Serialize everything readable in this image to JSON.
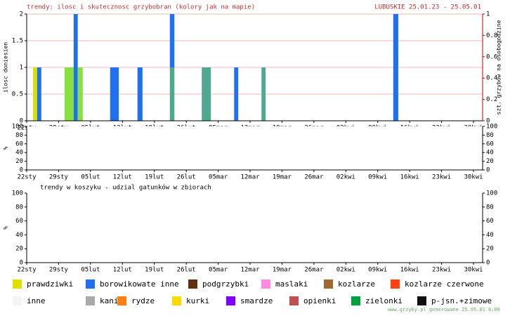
{
  "header": {
    "title": "trendy: ilosc i skutecznosc grzybobran (kolory jak na mapie)",
    "region": "LUBUSKIE 25.01.23 - 25.05.01"
  },
  "chart_data": [
    {
      "type": "bar",
      "ylabel": "ilosc doniesien",
      "y2label": "szt. grzybow na osobogodzine",
      "y2_color": "#c00000",
      "grid": true,
      "ylim": [
        0,
        2
      ],
      "yticks": [
        0,
        0.5,
        1,
        1.5,
        2
      ],
      "y2lim": [
        0,
        1
      ],
      "y2ticks": [
        0,
        0.2,
        0.4,
        0.6,
        0.8,
        1
      ],
      "xlim": [
        0,
        100
      ],
      "xticks": [
        {
          "value": 0,
          "label": "22sty"
        },
        {
          "value": 7,
          "label": "29sty"
        },
        {
          "value": 14,
          "label": "05lut"
        },
        {
          "value": 21,
          "label": "12lut"
        },
        {
          "value": 28,
          "label": "19lut"
        },
        {
          "value": 35,
          "label": "26lut"
        },
        {
          "value": 42,
          "label": "05mar"
        },
        {
          "value": 49,
          "label": "12mar"
        },
        {
          "value": 56,
          "label": "19mar"
        },
        {
          "value": 63,
          "label": "26mar"
        },
        {
          "value": 70,
          "label": "02kwi"
        },
        {
          "value": 77,
          "label": "09kwi"
        },
        {
          "value": 84,
          "label": "16kwi"
        },
        {
          "value": 91,
          "label": "23kwi"
        },
        {
          "value": 98,
          "label": "30kwi"
        }
      ],
      "bars": [
        {
          "x": [
            1.4,
            2.3
          ],
          "segments": [
            {
              "color": "#d8e000",
              "value": 1
            }
          ]
        },
        {
          "x": [
            2.3,
            3.2
          ],
          "segments": [
            {
              "color": "#2070f0",
              "value": 1
            }
          ]
        },
        {
          "x": [
            8.3,
            10.3
          ],
          "segments": [
            {
              "color": "#88e040",
              "value": 1
            }
          ]
        },
        {
          "x": [
            10.3,
            11.2
          ],
          "segments": [
            {
              "color": "#2070f0",
              "value": 2
            }
          ]
        },
        {
          "x": [
            11.2,
            12.3
          ],
          "segments": [
            {
              "color": "#88e040",
              "value": 1
            }
          ]
        },
        {
          "x": [
            18.3,
            20.2
          ],
          "segments": [
            {
              "color": "#2070f0",
              "value": 1
            }
          ]
        },
        {
          "x": [
            24.3,
            25.4
          ],
          "segments": [
            {
              "color": "#2070f0",
              "value": 1
            }
          ]
        },
        {
          "x": [
            31.4,
            32.4
          ],
          "segments": [
            {
              "color": "#50a890",
              "value": 1
            },
            {
              "color": "#2070f0",
              "value": 1
            }
          ]
        },
        {
          "x": [
            38.4,
            40.4
          ],
          "segments": [
            {
              "color": "#50a890",
              "value": 1
            }
          ]
        },
        {
          "x": [
            45.5,
            46.4
          ],
          "segments": [
            {
              "color": "#2070f0",
              "value": 1
            }
          ]
        },
        {
          "x": [
            51.5,
            52.4
          ],
          "segments": [
            {
              "color": "#50a890",
              "value": 1
            }
          ]
        },
        {
          "x": [
            80.4,
            81.5
          ],
          "segments": [
            {
              "color": "#2070f0",
              "value": 2
            }
          ]
        }
      ]
    },
    {
      "type": "bar",
      "ylabel": "%",
      "grid": false,
      "ylim": [
        0,
        100
      ],
      "yticks": [
        0,
        20,
        40,
        60,
        80,
        100
      ],
      "y2lim": [
        0,
        100
      ],
      "y2ticks": [
        0,
        20,
        40,
        60,
        80,
        100
      ],
      "xlim": [
        0,
        100
      ],
      "xticks": [
        {
          "value": 0,
          "label": "22sty"
        },
        {
          "value": 7,
          "label": "29sty"
        },
        {
          "value": 14,
          "label": "05lut"
        },
        {
          "value": 21,
          "label": "12lut"
        },
        {
          "value": 28,
          "label": "19lut"
        },
        {
          "value": 35,
          "label": "26lut"
        },
        {
          "value": 42,
          "label": "05mar"
        },
        {
          "value": 49,
          "label": "12mar"
        },
        {
          "value": 56,
          "label": "19mar"
        },
        {
          "value": 63,
          "label": "26mar"
        },
        {
          "value": 70,
          "label": "02kwi"
        },
        {
          "value": 77,
          "label": "09kwi"
        },
        {
          "value": 84,
          "label": "16kwi"
        },
        {
          "value": 91,
          "label": "23kwi"
        },
        {
          "value": 98,
          "label": "30kwi"
        }
      ],
      "bars": []
    },
    {
      "type": "bar",
      "title": "trendy w koszyku - udzial gatunków w zbiorach",
      "ylabel": "%",
      "grid": false,
      "ylim": [
        0,
        100
      ],
      "yticks": [
        0,
        20,
        40,
        60,
        80,
        100
      ],
      "y2lim": [
        0,
        100
      ],
      "y2ticks": [
        0,
        20,
        40,
        60,
        80,
        100
      ],
      "xlim": [
        0,
        100
      ],
      "xticks": [
        {
          "value": 0,
          "label": "22sty"
        },
        {
          "value": 7,
          "label": "29sty"
        },
        {
          "value": 14,
          "label": "05lut"
        },
        {
          "value": 21,
          "label": "12lut"
        },
        {
          "value": 28,
          "label": "19lut"
        },
        {
          "value": 35,
          "label": "26lut"
        },
        {
          "value": 42,
          "label": "05mar"
        },
        {
          "value": 49,
          "label": "12mar"
        },
        {
          "value": 56,
          "label": "19mar"
        },
        {
          "value": 63,
          "label": "26mar"
        },
        {
          "value": 70,
          "label": "02kwi"
        },
        {
          "value": 77,
          "label": "09kwi"
        },
        {
          "value": 84,
          "label": "16kwi"
        },
        {
          "value": 91,
          "label": "23kwi"
        },
        {
          "value": 98,
          "label": "30kwi"
        }
      ],
      "bars": []
    }
  ],
  "legend": [
    {
      "label": "prawdziwki",
      "color": "#e0e000"
    },
    {
      "label": "borowikowate inne",
      "color": "#2070f0"
    },
    {
      "label": "podgrzybki",
      "color": "#603010"
    },
    {
      "label": "maslaki",
      "color": "#ff88e0"
    },
    {
      "label": "kozlarze",
      "color": "#a06830"
    },
    {
      "label": "kozlarze czerwone",
      "color": "#ff4010"
    },
    {
      "label": "inne",
      "color": "#f4f4f4"
    },
    {
      "label": "kanie",
      "color": "#aaaaaa"
    },
    {
      "label": "rydze",
      "color": "#ff8010"
    },
    {
      "label": "kurki",
      "color": "#ffd800"
    },
    {
      "label": "smardze",
      "color": "#8000ff"
    },
    {
      "label": "opienki",
      "color": "#c05050"
    },
    {
      "label": "zielonki",
      "color": "#00a040"
    },
    {
      "label": "p-jsn.+zimowe",
      "color": "#101010"
    }
  ],
  "footer": "www.grzyby.pl generowane 25.05.01  6:06"
}
